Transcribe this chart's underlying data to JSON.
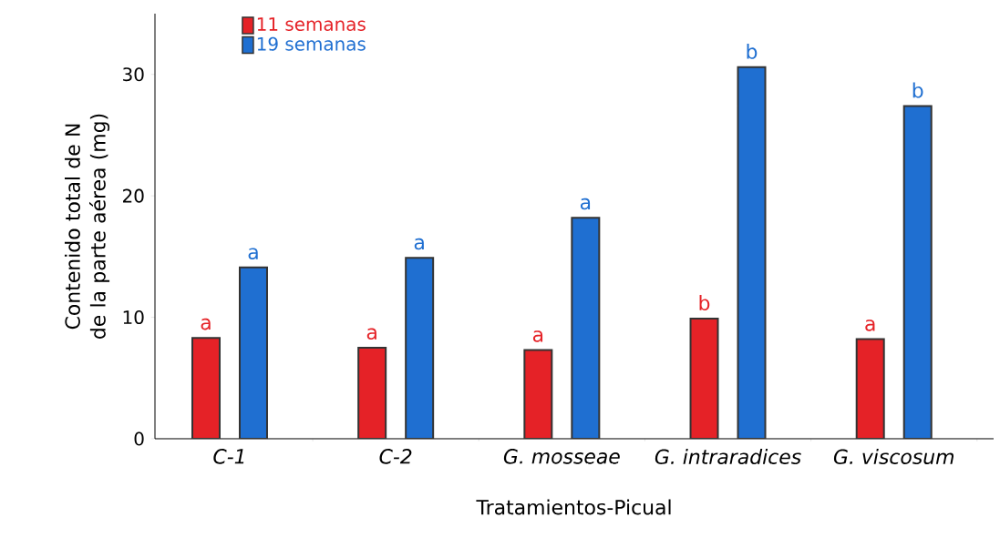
{
  "chart_data": {
    "type": "bar",
    "xlabel": "Tratamientos-Picual",
    "ylabel": "Contenido total de N de la parte aérea (mg)",
    "categories": [
      "C-1",
      "C-2",
      "G. mosseae",
      "G. intraradices",
      "G. viscosum"
    ],
    "series": [
      {
        "name": "11 semanas",
        "color": "#e52227",
        "values": [
          8.3,
          7.5,
          7.3,
          9.9,
          8.2
        ],
        "value_labels": [
          "a",
          "a",
          "a",
          "b",
          "a"
        ]
      },
      {
        "name": "19 semanas",
        "color": "#1f6fd1",
        "values": [
          14.1,
          14.9,
          18.2,
          30.6,
          27.4
        ],
        "value_labels": [
          "a",
          "a",
          "a",
          "b",
          "b"
        ]
      }
    ],
    "ylim": [
      0,
      35
    ],
    "yticks": [
      0,
      10,
      20,
      30
    ],
    "legend": "top left"
  }
}
